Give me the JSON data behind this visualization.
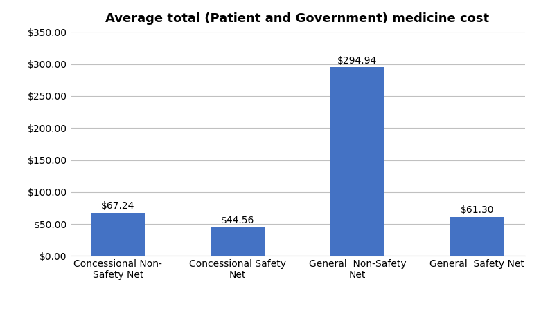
{
  "title": "Average total (Patient and Government) medicine cost",
  "categories": [
    "Concessional Non-\nSafety Net",
    "Concessional Safety\nNet",
    "General  Non-Safety\nNet",
    "General  Safety Net"
  ],
  "values": [
    67.24,
    44.56,
    294.94,
    61.3
  ],
  "labels": [
    "$67.24",
    "$44.56",
    "$294.94",
    "$61.30"
  ],
  "bar_color": "#4472C4",
  "ylim": [
    0,
    350
  ],
  "yticks": [
    0,
    50,
    100,
    150,
    200,
    250,
    300,
    350
  ],
  "title_fontsize": 13,
  "label_fontsize": 10,
  "tick_fontsize": 10,
  "background_color": "#ffffff",
  "grid_color": "#c0c0c0",
  "bar_width": 0.45
}
